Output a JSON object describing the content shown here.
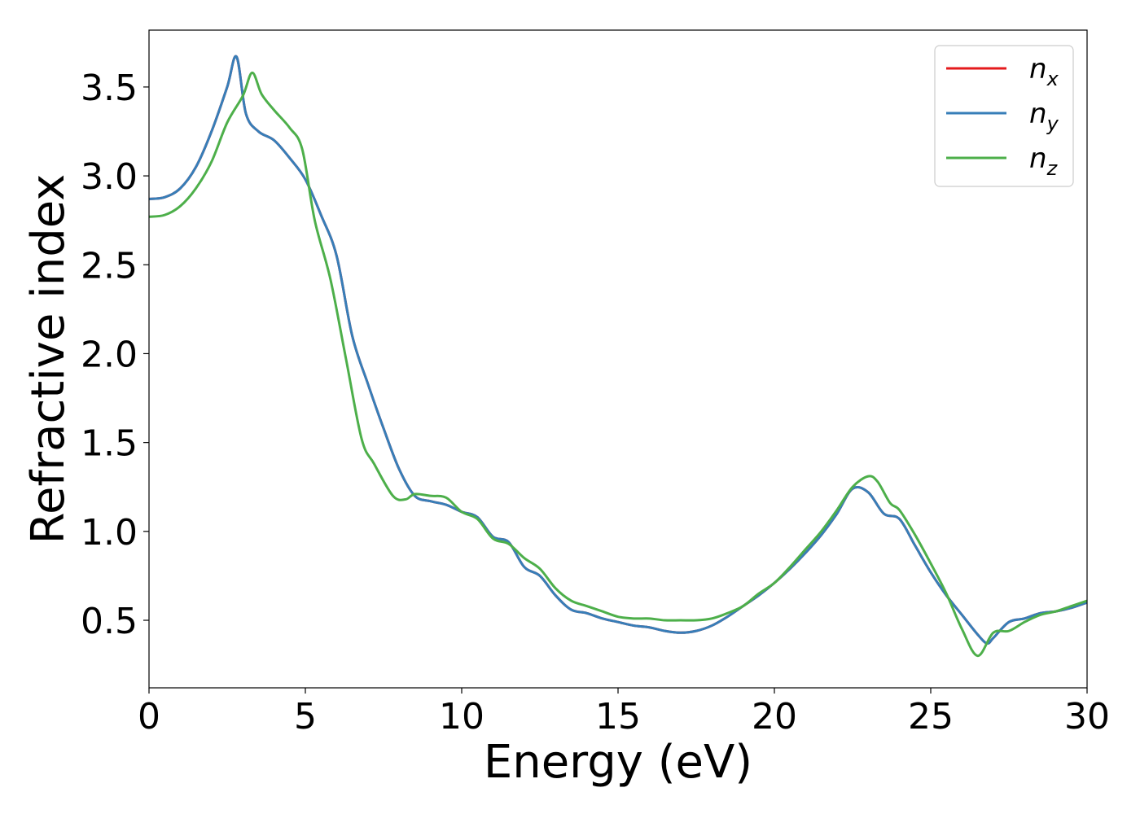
{
  "chart_data": {
    "type": "line",
    "title": "",
    "xlabel": "Energy (eV)",
    "ylabel": "Refractive index",
    "xlim": [
      0,
      30
    ],
    "ylim": [
      0.12,
      3.82
    ],
    "xticks": [
      0,
      5,
      10,
      15,
      20,
      25,
      30
    ],
    "yticks": [
      0.5,
      1.0,
      1.5,
      2.0,
      2.5,
      3.0,
      3.5
    ],
    "grid": false,
    "legend_position": "top-right",
    "series": [
      {
        "name": "n",
        "subscript": "x",
        "color": "#e41a1c",
        "x": [
          0,
          0.5,
          1,
          1.5,
          2,
          2.5,
          2.8,
          3.1,
          3.5,
          4,
          4.5,
          5,
          5.5,
          6,
          6.5,
          7,
          7.5,
          8,
          8.5,
          9,
          9.5,
          10,
          10.5,
          11,
          11.5,
          12,
          12.5,
          13,
          13.5,
          14,
          14.5,
          15,
          15.5,
          16,
          16.5,
          17,
          17.5,
          18,
          18.5,
          19,
          19.5,
          20,
          20.5,
          21,
          21.5,
          22,
          22.5,
          23,
          23.5,
          24,
          24.5,
          25,
          25.5,
          26,
          26.5,
          26.8,
          27,
          27.5,
          28,
          28.5,
          29,
          29.5,
          30
        ],
        "y": [
          2.87,
          2.88,
          2.93,
          3.05,
          3.25,
          3.5,
          3.67,
          3.35,
          3.25,
          3.2,
          3.1,
          2.98,
          2.78,
          2.55,
          2.1,
          1.83,
          1.58,
          1.35,
          1.2,
          1.17,
          1.15,
          1.11,
          1.08,
          0.97,
          0.94,
          0.8,
          0.75,
          0.64,
          0.56,
          0.54,
          0.51,
          0.49,
          0.47,
          0.46,
          0.44,
          0.43,
          0.44,
          0.47,
          0.52,
          0.58,
          0.64,
          0.71,
          0.79,
          0.88,
          0.98,
          1.1,
          1.24,
          1.22,
          1.1,
          1.07,
          0.92,
          0.77,
          0.64,
          0.53,
          0.42,
          0.37,
          0.4,
          0.49,
          0.51,
          0.54,
          0.55,
          0.57,
          0.6
        ]
      },
      {
        "name": "n",
        "subscript": "y",
        "color": "#377eb8",
        "x": [
          0,
          0.5,
          1,
          1.5,
          2,
          2.5,
          2.8,
          3.1,
          3.5,
          4,
          4.5,
          5,
          5.5,
          6,
          6.5,
          7,
          7.5,
          8,
          8.5,
          9,
          9.5,
          10,
          10.5,
          11,
          11.5,
          12,
          12.5,
          13,
          13.5,
          14,
          14.5,
          15,
          15.5,
          16,
          16.5,
          17,
          17.5,
          18,
          18.5,
          19,
          19.5,
          20,
          20.5,
          21,
          21.5,
          22,
          22.5,
          23,
          23.5,
          24,
          24.5,
          25,
          25.5,
          26,
          26.5,
          26.8,
          27,
          27.5,
          28,
          28.5,
          29,
          29.5,
          30
        ],
        "y": [
          2.87,
          2.88,
          2.93,
          3.05,
          3.25,
          3.5,
          3.67,
          3.35,
          3.25,
          3.2,
          3.1,
          2.98,
          2.78,
          2.55,
          2.1,
          1.83,
          1.58,
          1.35,
          1.2,
          1.17,
          1.15,
          1.11,
          1.08,
          0.97,
          0.94,
          0.8,
          0.75,
          0.64,
          0.56,
          0.54,
          0.51,
          0.49,
          0.47,
          0.46,
          0.44,
          0.43,
          0.44,
          0.47,
          0.52,
          0.58,
          0.64,
          0.71,
          0.79,
          0.88,
          0.98,
          1.1,
          1.24,
          1.22,
          1.1,
          1.07,
          0.92,
          0.77,
          0.64,
          0.53,
          0.42,
          0.37,
          0.4,
          0.49,
          0.51,
          0.54,
          0.55,
          0.57,
          0.6
        ]
      },
      {
        "name": "n",
        "subscript": "z",
        "color": "#4daf4a",
        "x": [
          0,
          0.5,
          1,
          1.5,
          2,
          2.5,
          3,
          3.3,
          3.6,
          4,
          4.5,
          4.9,
          5.3,
          5.8,
          6.3,
          6.8,
          7.2,
          7.8,
          8.2,
          8.5,
          9,
          9.5,
          10,
          10.5,
          11,
          11.5,
          12,
          12.5,
          13,
          13.5,
          14,
          14.5,
          15,
          15.5,
          16,
          16.5,
          17,
          17.5,
          18,
          18.5,
          19,
          19.5,
          20,
          20.5,
          21,
          21.5,
          22,
          22.5,
          23,
          23.3,
          23.7,
          24,
          24.5,
          25,
          25.5,
          26,
          26.5,
          27,
          27.5,
          28,
          28.5,
          29,
          29.5,
          30
        ],
        "y": [
          2.77,
          2.78,
          2.83,
          2.93,
          3.08,
          3.3,
          3.45,
          3.58,
          3.46,
          3.37,
          3.27,
          3.15,
          2.75,
          2.42,
          1.97,
          1.52,
          1.38,
          1.2,
          1.18,
          1.21,
          1.2,
          1.19,
          1.11,
          1.07,
          0.96,
          0.93,
          0.85,
          0.79,
          0.68,
          0.61,
          0.58,
          0.55,
          0.52,
          0.51,
          0.51,
          0.5,
          0.5,
          0.5,
          0.51,
          0.54,
          0.58,
          0.65,
          0.71,
          0.8,
          0.9,
          1.0,
          1.12,
          1.25,
          1.31,
          1.28,
          1.16,
          1.12,
          0.98,
          0.82,
          0.65,
          0.45,
          0.3,
          0.43,
          0.44,
          0.49,
          0.53,
          0.55,
          0.58,
          0.61
        ]
      }
    ]
  }
}
